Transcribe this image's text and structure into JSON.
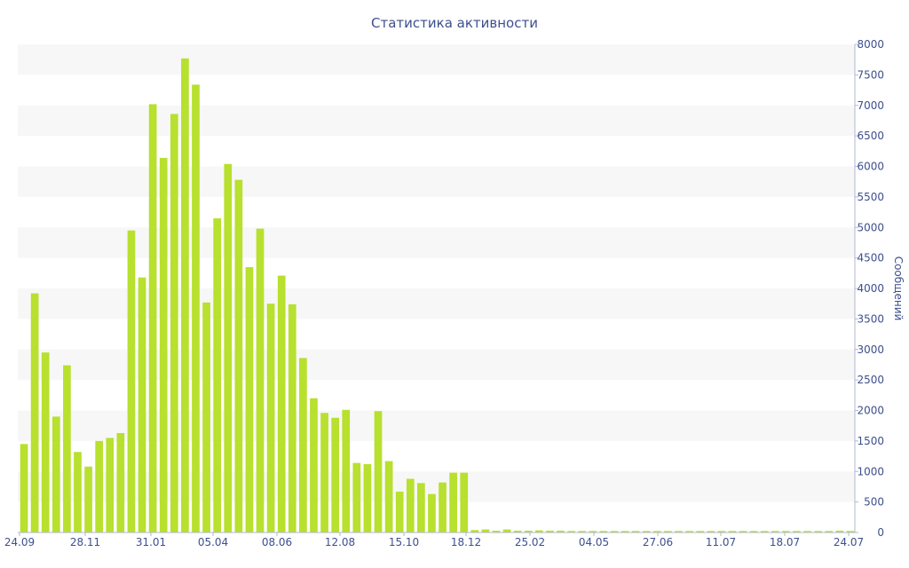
{
  "chart_data": {
    "type": "bar",
    "title": "Статистика активности",
    "xlabel": "",
    "ylabel": "Сообщений",
    "ylim": [
      0,
      8000
    ],
    "y_ticks": [
      0,
      500,
      1000,
      1500,
      2000,
      2500,
      3000,
      3500,
      4000,
      4500,
      5000,
      5500,
      6000,
      6500,
      7000,
      7500,
      8000
    ],
    "y_axis_position": "right",
    "x_tick_labels": [
      "24.09",
      "28.11",
      "31.01",
      "05.04",
      "08.06",
      "12.08",
      "15.10",
      "18.12",
      "25.02",
      "04.05",
      "27.06",
      "11.07",
      "18.07",
      "24.07"
    ],
    "grid": "alternating horizontal bands",
    "bar_color": "#b8e02e",
    "text_color": "#3d4f8e",
    "series": [
      {
        "values": [
          1450,
          3920,
          2950,
          1900,
          2740,
          1320,
          1080,
          1500,
          1550,
          1630,
          4950,
          4180,
          7020,
          6140,
          6860,
          7770,
          7340,
          3770,
          5150,
          6040,
          5780,
          4350,
          4980,
          3750,
          4210,
          3740,
          2860,
          2200,
          1960,
          1880,
          2010,
          1140,
          1120,
          1990,
          1170,
          670,
          880,
          810,
          630,
          820,
          980,
          980,
          40,
          50,
          30,
          50,
          30,
          30,
          35,
          30,
          30,
          25,
          25,
          25,
          25,
          25,
          25,
          25,
          25,
          25,
          25,
          25,
          25,
          25,
          25,
          25,
          25,
          25,
          25,
          25,
          25,
          25,
          25,
          25,
          25,
          25,
          30,
          25
        ]
      }
    ]
  }
}
